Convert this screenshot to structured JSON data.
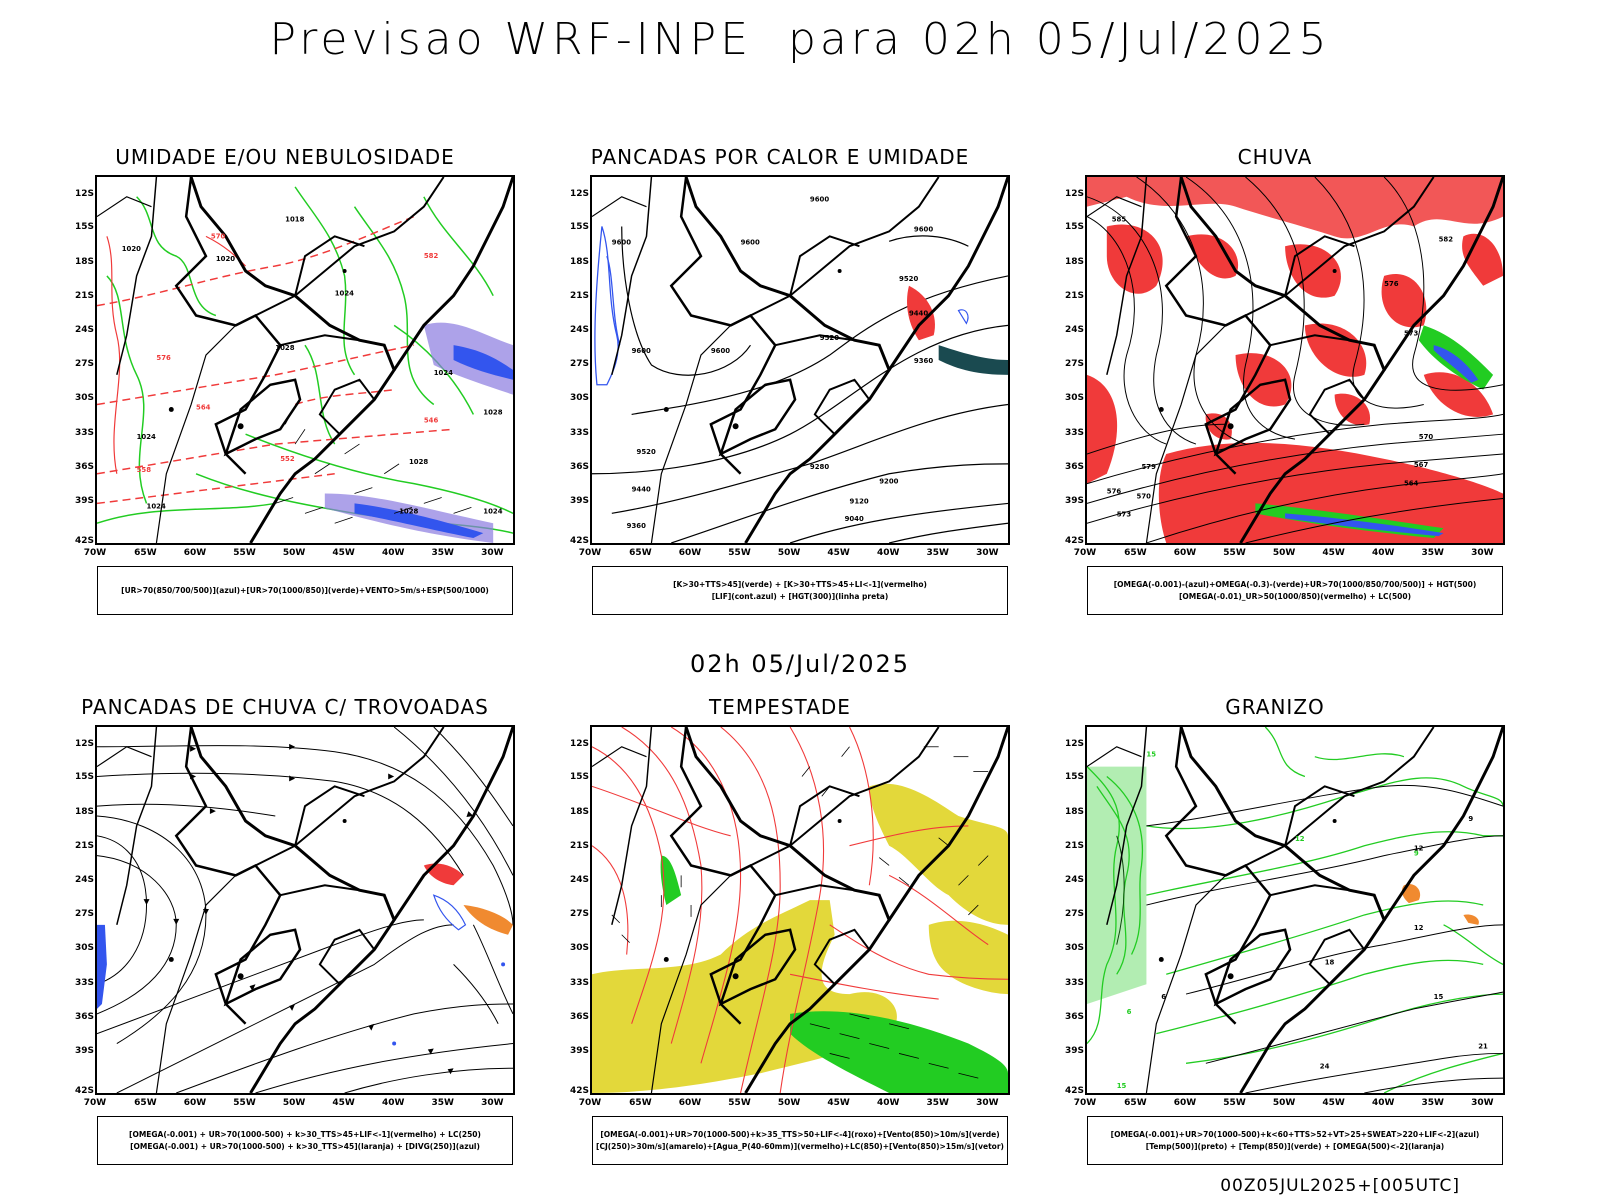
{
  "main_title": "Previsao WRF-INPE  para 02h 05/Jul/2025",
  "mid_title": "02h 05/Jul/2025",
  "footer": "00Z05JUL2025+[005UTC]",
  "lat_labels": [
    "12S",
    "15S",
    "18S",
    "21S",
    "24S",
    "27S",
    "30S",
    "33S",
    "36S",
    "39S",
    "42S"
  ],
  "lon_labels": [
    "70W",
    "65W",
    "60W",
    "55W",
    "50W",
    "45W",
    "40W",
    "35W",
    "30W"
  ],
  "panels": [
    {
      "id": "umidade",
      "title": "UMIDADE E/OU NEBULOSIDADE",
      "legend": [
        "[UR>70(850/700/500)](azul)+[UR>70(1000/850)](verde)+VENTO>5m/s+ESP(500/1000)"
      ]
    },
    {
      "id": "pancadas_calor",
      "title": "PANCADAS POR CALOR E UMIDADE",
      "legend": [
        "[K>30+TTS>45](verde) + [K>30+TTS>45+LI<-1](vermelho)",
        "[LIF](cont.azul) + [HGT(300)](linha preta)"
      ]
    },
    {
      "id": "chuva",
      "title": "CHUVA",
      "legend": [
        "[OMEGA(-0.001)-(azul)+OMEGA(-0.3)-(verde)+UR>70(1000/850/700/500)] + HGT(500)",
        "[OMEGA(-0.01)_UR>50(1000/850)(vermelho) + LC(500)"
      ]
    },
    {
      "id": "trovoadas",
      "title": "PANCADAS DE CHUVA C/ TROVOADAS",
      "legend": [
        "[OMEGA(-0.001) + UR>70(1000-500) + k>30_TTS>45+LIF<-1](vermelho) + LC(250)",
        "[OMEGA(-0.001) + UR>70(1000-500) + k>30_TTS>45](laranja) + [DIVG(250)](azul)"
      ]
    },
    {
      "id": "tempestade",
      "title": "TEMPESTADE",
      "legend": [
        "[OMEGA(-0.001)+UR>70(1000-500)+k>35_TTS>50+LIF<-4](roxo)+[Vento(850)>10m/s](verde)",
        "[CJ(250)>30m/s](amarelo)+[Agua_P(40-60mm)](vermelho)+LC(850)+[Vento(850)>15m/s](vetor)"
      ]
    },
    {
      "id": "granizo",
      "title": "GRANIZO",
      "legend": [
        "[OMEGA(-0.001)+UR>70(1000-500)+k<60+TTS>52+VT>25+SWEAT>220+LIF<-2](azul)",
        "[Temp(500)](preto) + [Temp(850)](verde) + [OMEGA(500)<-2](laranja)"
      ]
    }
  ],
  "contour_labels": {
    "umidade": [
      "1020",
      "1018",
      "1020",
      "1024",
      "1028",
      "1024",
      "1024",
      "1028",
      "1024",
      "1028",
      "1028",
      "1024",
      "570",
      "576",
      "564",
      "558",
      "552",
      "546",
      "582"
    ],
    "pancadas_calor": [
      "9600",
      "9600",
      "9600",
      "9600",
      "9520",
      "9440",
      "9360",
      "9520",
      "9440",
      "9360",
      "9280",
      "9200",
      "9120",
      "9040"
    ],
    "chuva": [
      "585",
      "582",
      "576",
      "573",
      "570",
      "567",
      "564",
      "579",
      "573",
      "570",
      "576"
    ],
    "granizo": [
      "15",
      "12",
      "9",
      "6",
      "3",
      "21",
      "24",
      "18",
      "15",
      "12",
      "6"
    ]
  },
  "colors": {
    "red": "#f03a3a",
    "green": "#22cc22",
    "blue": "#3355ee",
    "yellow": "#e3d83a",
    "orange": "#f08a30",
    "purple": "#8a7ae0",
    "teal": "#1a4a50"
  }
}
